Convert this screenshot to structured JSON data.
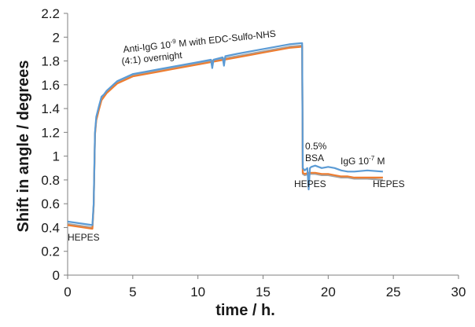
{
  "chart_data": {
    "type": "line",
    "xlabel": "time / h.",
    "ylabel": "Shift in angle / degrees",
    "xlim": [
      0,
      30
    ],
    "ylim": [
      0,
      2.2
    ],
    "xticks": [
      0,
      5,
      10,
      15,
      20,
      25,
      30
    ],
    "xtick_labels": [
      "0",
      "5",
      "10",
      "15",
      "20",
      "25",
      "30"
    ],
    "yticks": [
      0,
      0.2,
      0.4,
      0.6,
      0.8,
      1,
      1.2,
      1.4,
      1.6,
      1.8,
      2,
      2.2
    ],
    "ytick_labels": [
      "0",
      "0.2",
      "0.4",
      "0.6",
      "0.8",
      "1",
      "1.2",
      "1.4",
      "1.6",
      "1.8",
      "2",
      "2.2"
    ],
    "grid": false,
    "series": [
      {
        "color": "#5b9bd5",
        "x": [
          0,
          1.9,
          2.0,
          2.1,
          2.2,
          2.4,
          2.6,
          2.8,
          3.0,
          3.2,
          3.5,
          3.8,
          4.2,
          4.6,
          5,
          6,
          7,
          8,
          9,
          10,
          11,
          11.1,
          11.2,
          11.9,
          12.0,
          12.1,
          13,
          14,
          15,
          16,
          17,
          18,
          18.05,
          18.2,
          18.4,
          18.5,
          18.6,
          18.7,
          19,
          19.5,
          20,
          20.5,
          21,
          21.5,
          22,
          23,
          24.2
        ],
        "y": [
          0.45,
          0.42,
          0.6,
          1.2,
          1.33,
          1.42,
          1.5,
          1.52,
          1.55,
          1.57,
          1.6,
          1.63,
          1.65,
          1.67,
          1.69,
          1.71,
          1.73,
          1.75,
          1.77,
          1.79,
          1.81,
          1.74,
          1.81,
          1.83,
          1.76,
          1.84,
          1.86,
          1.88,
          1.9,
          1.92,
          1.94,
          1.95,
          0.9,
          0.88,
          0.9,
          0.72,
          0.9,
          0.91,
          0.92,
          0.9,
          0.91,
          0.9,
          0.88,
          0.87,
          0.87,
          0.88,
          0.87
        ]
      },
      {
        "color": "#ed7d31",
        "x": [
          0,
          1.9,
          2.0,
          2.1,
          2.2,
          2.4,
          2.6,
          2.8,
          3.0,
          3.2,
          3.5,
          3.8,
          4.2,
          4.6,
          5,
          6,
          7,
          8,
          9,
          10,
          11,
          12,
          13,
          14,
          15,
          16,
          17,
          18,
          18.05,
          18.2,
          18.5,
          19,
          19.5,
          20,
          20.5,
          21,
          21.5,
          22,
          23,
          24.2
        ],
        "y": [
          0.42,
          0.39,
          0.58,
          1.18,
          1.3,
          1.39,
          1.47,
          1.5,
          1.53,
          1.55,
          1.58,
          1.61,
          1.63,
          1.65,
          1.67,
          1.69,
          1.71,
          1.73,
          1.75,
          1.77,
          1.79,
          1.81,
          1.83,
          1.85,
          1.87,
          1.89,
          1.91,
          1.92,
          0.86,
          0.85,
          0.86,
          0.86,
          0.85,
          0.85,
          0.84,
          0.83,
          0.83,
          0.82,
          0.82,
          0.82
        ]
      },
      {
        "color": "#a5a5a5",
        "x": [
          0,
          1.9,
          2.0,
          2.1,
          2.2,
          2.4,
          2.6,
          2.8,
          3.0,
          3.2,
          3.5,
          3.8,
          4.2,
          4.6,
          5,
          6,
          7,
          8,
          9,
          10,
          11,
          12,
          13,
          14,
          15,
          16,
          17,
          18,
          18.05,
          18.2,
          18.5,
          19,
          19.5,
          20,
          20.5,
          21,
          21.5,
          22,
          23,
          24.2
        ],
        "y": [
          0.43,
          0.4,
          0.59,
          1.19,
          1.31,
          1.4,
          1.48,
          1.51,
          1.54,
          1.56,
          1.59,
          1.62,
          1.64,
          1.66,
          1.68,
          1.7,
          1.72,
          1.74,
          1.76,
          1.78,
          1.8,
          1.82,
          1.84,
          1.86,
          1.88,
          1.9,
          1.92,
          1.93,
          0.85,
          0.84,
          0.85,
          0.85,
          0.84,
          0.84,
          0.83,
          0.82,
          0.82,
          0.81,
          0.81,
          0.8
        ]
      }
    ],
    "annotations": [
      {
        "text": "Anti-IgG 10",
        "sup": "-9",
        "tail": " M  with EDC-Sulfo-NHS"
      },
      {
        "text": "(4:1) overnight"
      },
      {
        "text": "HEPES"
      },
      {
        "text": "0.5%"
      },
      {
        "text": "BSA"
      },
      {
        "text": "IgG 10",
        "sup": "-7",
        "tail": " M"
      },
      {
        "text": "HEPES"
      },
      {
        "text": "HEPES"
      }
    ]
  }
}
